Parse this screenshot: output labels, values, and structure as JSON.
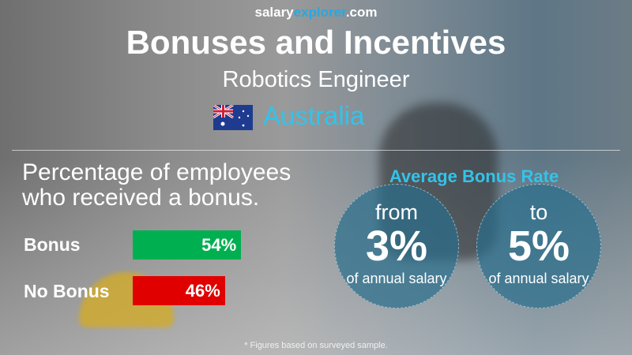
{
  "header": {
    "site_a": "salary",
    "site_b": "explorer",
    "site_c": ".com",
    "title": "Bonuses and Incentives",
    "job": "Robotics Engineer",
    "country": "Australia",
    "flag_icon": "australia-flag"
  },
  "question": {
    "line1": "Percentage of employees",
    "line2": "who received a bonus."
  },
  "chart_data": {
    "type": "bar",
    "orientation": "horizontal",
    "categories": [
      "Bonus",
      "No Bonus"
    ],
    "values": [
      54,
      46
    ],
    "value_labels": [
      "54%",
      "46%"
    ],
    "colors": [
      "#00b050",
      "#e00000"
    ],
    "xlim": [
      0,
      100
    ]
  },
  "average": {
    "title": "Average Bonus Rate",
    "from_word": "from",
    "from_value": "3%",
    "to_word": "to",
    "to_value": "5%",
    "unit": "of annual salary"
  },
  "footnote": "* Figures based on surveyed sample."
}
